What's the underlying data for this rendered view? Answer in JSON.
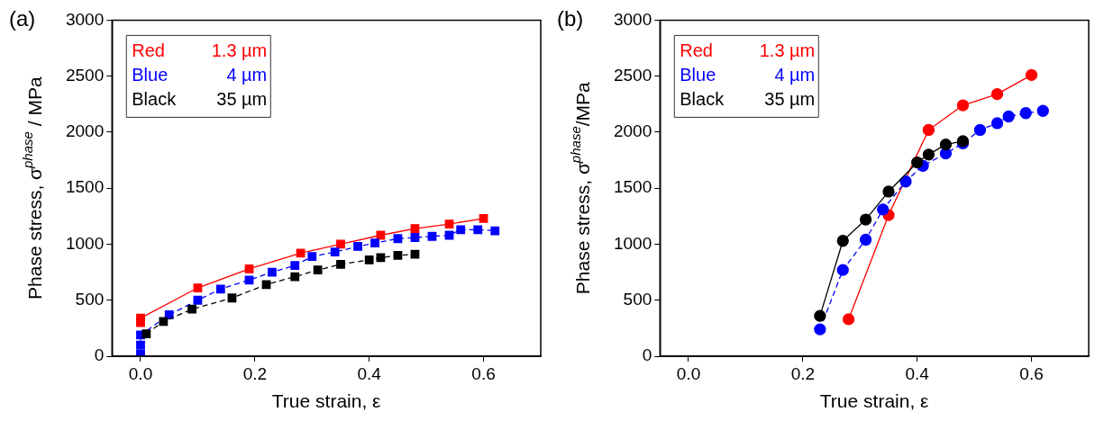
{
  "chart_data": [
    {
      "type": "line",
      "title": "(a)",
      "xlabel": "True strain, ε",
      "ylabel": "Phase stress, σ$^{phase}$ / MPa",
      "xlim": [
        -0.05,
        0.7
      ],
      "xticks": [
        {
          "value": 0,
          "label": "0.0"
        },
        0.2,
        0.4,
        0.6
      ],
      "ylim": [
        0,
        3000
      ],
      "yticks": [
        0,
        500,
        1000,
        1500,
        2000,
        2500,
        3000
      ],
      "grid": false,
      "marker": "square",
      "series": [
        {
          "name": "Red 1.3 µm",
          "color": "#ff0000",
          "line_style": "solid",
          "x": [
            0,
            0,
            0.1,
            0.19,
            0.28,
            0.35,
            0.42,
            0.48,
            0.54,
            0.6
          ],
          "values": [
            300,
            340,
            610,
            780,
            920,
            1000,
            1080,
            1140,
            1180,
            1230
          ]
        },
        {
          "name": "Blue 4 µm",
          "color": "#0000ff",
          "line_style": "dashed",
          "x": [
            0,
            0,
            0,
            0.05,
            0.1,
            0.14,
            0.19,
            0.23,
            0.27,
            0.3,
            0.34,
            0.38,
            0.41,
            0.45,
            0.48,
            0.51,
            0.54,
            0.56,
            0.59,
            0.62
          ],
          "values": [
            20,
            100,
            190,
            370,
            500,
            600,
            680,
            750,
            810,
            890,
            930,
            980,
            1010,
            1050,
            1060,
            1070,
            1080,
            1130,
            1130,
            1120
          ]
        },
        {
          "name": "Black 35 µm",
          "color": "#000000",
          "line_style": "dashed",
          "x": [
            0.01,
            0.04,
            0.09,
            0.16,
            0.22,
            0.27,
            0.31,
            0.35,
            0.4,
            0.42,
            0.45,
            0.48
          ],
          "values": [
            200,
            310,
            420,
            520,
            640,
            710,
            770,
            820,
            860,
            880,
            900,
            910
          ]
        }
      ]
    },
    {
      "type": "line",
      "title": "(b)",
      "xlabel": "True strain, ε",
      "ylabel": "Phase stress, σ$^{phase}$/MPa",
      "xlim": [
        -0.05,
        0.7
      ],
      "xticks": [
        {
          "value": 0,
          "label": "0.0"
        },
        0.2,
        0.4,
        0.6
      ],
      "ylim": [
        0,
        3000
      ],
      "yticks": [
        0,
        500,
        1000,
        1500,
        2000,
        2500,
        3000
      ],
      "grid": false,
      "marker": "circle",
      "series": [
        {
          "name": "Red 1.3 µm",
          "color": "#ff0000",
          "line_style": "solid",
          "x": [
            0.28,
            0.35,
            0.42,
            0.48,
            0.54,
            0.6
          ],
          "values": [
            330,
            1260,
            2020,
            2240,
            2340,
            2510
          ]
        },
        {
          "name": "Blue 4 µm",
          "color": "#0000ff",
          "line_style": "dashed",
          "x": [
            0.23,
            0.27,
            0.31,
            0.34,
            0.38,
            0.41,
            0.45,
            0.48,
            0.51,
            0.54,
            0.56,
            0.59,
            0.62
          ],
          "values": [
            240,
            770,
            1040,
            1310,
            1560,
            1700,
            1810,
            1900,
            2020,
            2080,
            2140,
            2170,
            2190
          ]
        },
        {
          "name": "Black 35 µm",
          "color": "#000000",
          "line_style": "solid",
          "x": [
            0.23,
            0.27,
            0.31,
            0.35,
            0.4,
            0.42,
            0.45,
            0.48
          ],
          "values": [
            360,
            1030,
            1220,
            1470,
            1730,
            1800,
            1890,
            1920
          ]
        }
      ]
    }
  ]
}
